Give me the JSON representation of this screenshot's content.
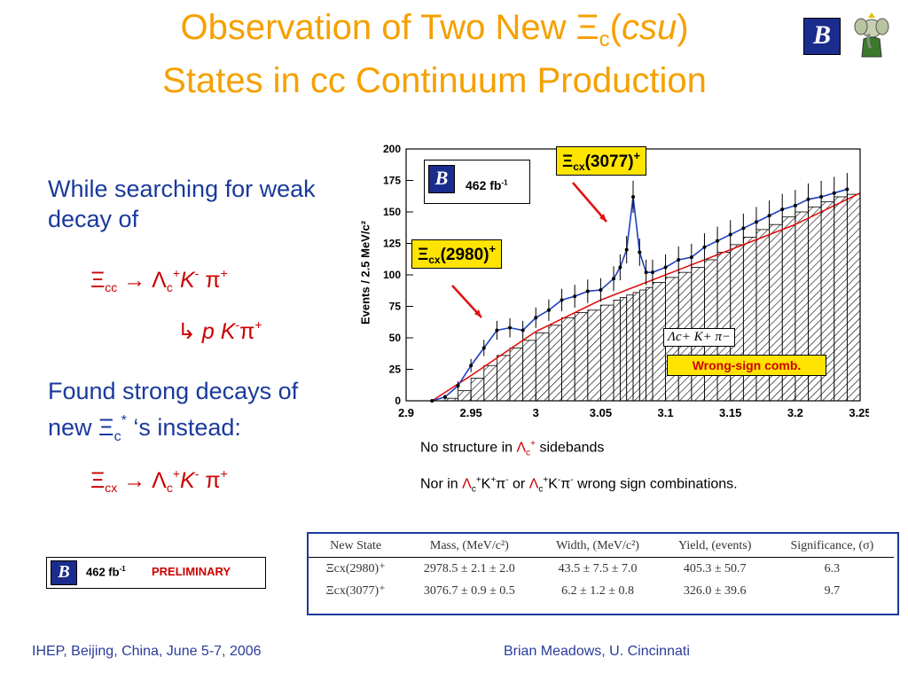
{
  "title": {
    "line1_prefix": "Observation of Two New Ξ",
    "line1_sub": "c",
    "line1_open": "(",
    "line1_italic": "csu",
    "line1_close": ")",
    "line2": "States in cc Continuum Production"
  },
  "left": {
    "intro": "While searching for weak decay of",
    "decay1": {
      "xi": "Ξ",
      "xi_sub": "cc",
      "arrow": "→",
      "lam": "Λ",
      "lam_sub": "c",
      "lam_sup": "+",
      "k": "K",
      "k_sup": "-",
      "pi": "π",
      "pi_sup": "+"
    },
    "decay2": {
      "hook": "↳",
      "p": "p",
      "k": "K",
      "k_sup": "-",
      "pi": "π",
      "pi_sup": "+"
    },
    "found": "Found strong decays of new Ξ",
    "found_sub": "c",
    "found_sup": "*",
    "found_end": "‘s instead:",
    "decay3": {
      "xi": "Ξ",
      "xi_sub": "cx",
      "arrow": "→",
      "lam": "Λ",
      "lam_sub": "c",
      "lam_sup": "+",
      "k": "K",
      "k_sup": "-",
      "pi": "π",
      "pi_sup": "+"
    }
  },
  "badge_bottom": {
    "lumi": "462 fb",
    "lumi_sup": "-1",
    "status": "PRELIMINARY",
    "logo": "B"
  },
  "chart_badge": {
    "lumi": "462 fb",
    "lumi_sup": "-1",
    "logo": "B"
  },
  "labels": {
    "peak3077": "Ξ",
    "peak3077_sub": "cx",
    "peak3077_mass": "(3077)",
    "peak3077_sup": "+",
    "peak2980": "Ξ",
    "peak2980_sub": "cx",
    "peak2980_mass": "(2980)",
    "peak2980_sup": "+",
    "wrongsign_formula": "Λc+ K+ π−",
    "wrongsign": "Wrong-sign comb."
  },
  "notes": {
    "line1_a": "No structure in ",
    "line1_lam": "Λ",
    "line1_sub": "c",
    "line1_sup": "+",
    "line1_b": " sidebands",
    "line2_a": "Nor in ",
    "line2_f1": "Λ",
    "line2_f1_sub": "c",
    "line2_f1_sup": "+",
    "line2_f1_k": "K",
    "line2_f1_ksup": "+",
    "line2_f1_pi": "π",
    "line2_f1_pisup": "-",
    "line2_or": " or ",
    "line2_f2": "Λ",
    "line2_f2_sub": "c",
    "line2_f2_sup": "+",
    "line2_f2_k": "K",
    "line2_f2_ksup": "-",
    "line2_f2_pi": "π",
    "line2_f2_pisup": "-",
    "line2_b": " wrong sign combinations."
  },
  "table": {
    "headers": [
      "New State",
      "Mass, (MeV/c²)",
      "Width, (MeV/c²)",
      "Yield, (events)",
      "Significance, (σ)"
    ],
    "rows": [
      [
        "Ξcx(2980)⁺",
        "2978.5 ± 2.1 ± 2.0",
        "43.5 ± 7.5 ± 7.0",
        "405.3 ± 50.7",
        "6.3"
      ],
      [
        "Ξcx(3077)⁺",
        "3076.7 ± 0.9 ± 0.5",
        "6.2 ± 1.2 ± 0.8",
        "326.0 ± 39.6",
        "9.7"
      ]
    ]
  },
  "footer": {
    "left": "IHEP, Beijing, China, June 5-7, 2006",
    "right": "Brian Meadows, U. Cincinnati"
  },
  "chart_data": {
    "type": "bar",
    "ylabel": "Events / 2.5 MeV/c²",
    "xlim": [
      2.9,
      3.25
    ],
    "ylim": [
      0,
      200
    ],
    "x_ticks": [
      "2.9",
      "2.95",
      "3",
      "3.05",
      "3.1",
      "3.15",
      "3.2",
      "3.25"
    ],
    "y_ticks": [
      "0",
      "25",
      "50",
      "75",
      "100",
      "125",
      "150",
      "175",
      "200"
    ],
    "data_series_x": [
      2.92,
      2.93,
      2.94,
      2.95,
      2.96,
      2.97,
      2.98,
      2.99,
      3.0,
      3.01,
      3.02,
      3.03,
      3.04,
      3.05,
      3.06,
      3.065,
      3.07,
      3.075,
      3.08,
      3.085,
      3.09,
      3.1,
      3.11,
      3.12,
      3.13,
      3.14,
      3.15,
      3.16,
      3.17,
      3.18,
      3.19,
      3.2,
      3.21,
      3.22,
      3.23,
      3.24
    ],
    "data_series_y": [
      0,
      3,
      12,
      28,
      42,
      56,
      58,
      56,
      66,
      72,
      80,
      83,
      87,
      88,
      97,
      106,
      120,
      162,
      118,
      102,
      102,
      106,
      112,
      114,
      122,
      127,
      132,
      137,
      142,
      147,
      152,
      155,
      160,
      162,
      165,
      168
    ],
    "wrong_sign_y": [
      0,
      2,
      8,
      18,
      28,
      36,
      42,
      48,
      54,
      60,
      66,
      70,
      72,
      76,
      80,
      82,
      84,
      86,
      88,
      90,
      94,
      98,
      102,
      106,
      112,
      118,
      124,
      130,
      136,
      140,
      146,
      150,
      154,
      158,
      162,
      164
    ],
    "fit_red": [
      [
        2.92,
        0
      ],
      [
        2.95,
        20
      ],
      [
        3.0,
        55
      ],
      [
        3.05,
        80
      ],
      [
        3.1,
        100
      ],
      [
        3.15,
        120
      ],
      [
        3.2,
        140
      ],
      [
        3.25,
        165
      ]
    ],
    "colors": {
      "data": "#000000",
      "fit_total": "#1f3fbf",
      "fit_background": "#e01010",
      "hatch": "#000000"
    }
  }
}
